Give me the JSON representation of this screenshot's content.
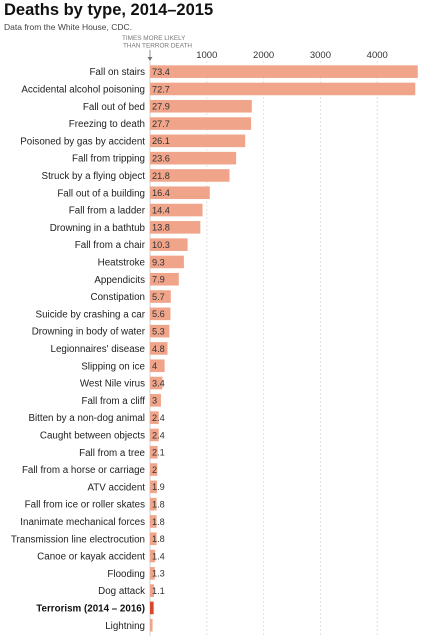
{
  "header": {
    "title": "Deaths by type, 2014–2015",
    "subtitle": "Data from the White House, CDC."
  },
  "chart_data": {
    "type": "bar",
    "orientation": "horizontal",
    "title": "Deaths by type, 2014–2015",
    "subtitle": "Data from the White House, CDC.",
    "annotation": [
      "TIMES MORE LIKELY",
      "THAN TERROR DEATH"
    ],
    "xlim": [
      0,
      4700
    ],
    "xticks": [
      1000,
      2000,
      3000,
      4000
    ],
    "grid": true,
    "bar_color": "#f0a58b",
    "highlight_color": "#d9472b",
    "categories": [
      "Fall on stairs",
      "Accidental alcohol poisoning",
      "Fall out of bed",
      "Freezing to death",
      "Poisoned by gas by accident",
      "Fall from tripping",
      "Struck by a flying object",
      "Fall out of a building",
      "Fall from a ladder",
      "Drowning in a bathtub",
      "Fall from a chair",
      "Heatstroke",
      "Appendicits",
      "Constipation",
      "Suicide by crashing a car",
      "Drowning in body of water",
      "Legionnaires' disease",
      "Slipping on ice",
      "West Nile virus",
      "Fall from a cliff",
      "Bitten by a non-dog animal",
      "Caught between objects",
      "Fall from a tree",
      "Fall from a horse or carriage",
      "ATV accident",
      "Fall from ice or roller skates",
      "Inanimate mechanical forces",
      "Transmission line electrocution",
      "Canoe or kayak accident",
      "Flooding",
      "Dog attack",
      "Terrorism (2014 – 2016)",
      "Lightning"
    ],
    "values": [
      4714,
      4670,
      1792,
      1779,
      1676,
      1516,
      1400,
      1053,
      925,
      886,
      662,
      597,
      507,
      366,
      360,
      340,
      308,
      257,
      218,
      193,
      154,
      154,
      135,
      128,
      122,
      116,
      116,
      116,
      90,
      84,
      71,
      64,
      45
    ],
    "value_labels": [
      "73.4",
      "72.7",
      "27.9",
      "27.7",
      "26.1",
      "23.6",
      "21.8",
      "16.4",
      "14.4",
      "13.8",
      "10.3",
      "9.3",
      "7.9",
      "5.7",
      "5.6",
      "5.3",
      "4.8",
      "4",
      "3.4",
      "3",
      "2.4",
      "2.4",
      "2.1",
      "2",
      "1.9",
      "1.8",
      "1.8",
      "1.8",
      "1.4",
      "1.3",
      "1.1",
      "",
      ""
    ],
    "highlight": [
      "Terrorism (2014 – 2016)"
    ]
  }
}
